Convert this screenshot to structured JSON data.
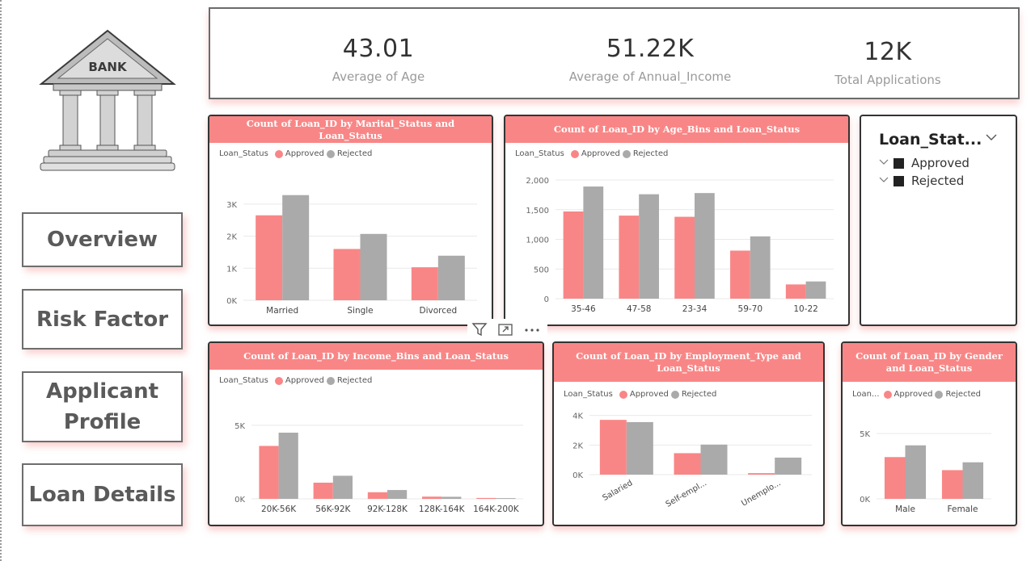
{
  "logo": {
    "text": "BANK"
  },
  "nav": [
    {
      "label": "Overview"
    },
    {
      "label": "Risk Factor"
    },
    {
      "label": "Applicant Profile"
    },
    {
      "label": "Loan Details"
    }
  ],
  "kpis": [
    {
      "value": "43.01",
      "label": "Average of Age"
    },
    {
      "value": "51.22K",
      "label": "Average of Annual_Income"
    },
    {
      "value": "12K",
      "label": "Total Applications"
    }
  ],
  "legend": {
    "field": "Loan_Status",
    "field_short": "Loan...",
    "approved": "Approved",
    "rejected": "Rejected"
  },
  "colors": {
    "approved": "#f98686",
    "rejected": "#aaaaaa"
  },
  "slicer": {
    "title": "Loan_Stat...",
    "items": [
      {
        "label": "Approved"
      },
      {
        "label": "Rejected"
      }
    ]
  },
  "visual_tools": [
    "filter-icon",
    "focus-mode-icon",
    "more-options-icon"
  ],
  "chart_data": [
    {
      "type": "bar",
      "title": "Count of Loan_ID by Marital_Status and Loan_Status",
      "categories": [
        "Married",
        "Single",
        "Divorced"
      ],
      "series": [
        {
          "name": "Approved",
          "values": [
            2650,
            1600,
            1030
          ]
        },
        {
          "name": "Rejected",
          "values": [
            3280,
            2070,
            1390
          ]
        }
      ],
      "ylim": [
        0,
        3600
      ],
      "yticks": [
        0,
        1000,
        2000,
        3000
      ],
      "ytick_labels": [
        "0K",
        "1K",
        "2K",
        "3K"
      ],
      "grid": true,
      "legend_position": "top-left"
    },
    {
      "type": "bar",
      "title": "Count of Loan_ID by Age_Bins and Loan_Status",
      "categories": [
        "35-46",
        "47-58",
        "23-34",
        "59-70",
        "10-22"
      ],
      "series": [
        {
          "name": "Approved",
          "values": [
            1470,
            1400,
            1380,
            810,
            240
          ]
        },
        {
          "name": "Rejected",
          "values": [
            1890,
            1760,
            1780,
            1050,
            290
          ]
        }
      ],
      "ylim": [
        0,
        2000
      ],
      "yticks": [
        0,
        500,
        1000,
        1500,
        2000
      ],
      "ytick_labels": [
        "0",
        "500",
        "1,000",
        "1,500",
        "2,000"
      ],
      "grid": true,
      "legend_position": "top-left"
    },
    {
      "type": "bar",
      "title": "Count of Loan_ID by Income_Bins and Loan_Status",
      "categories": [
        "20K-56K",
        "56K-92K",
        "92K-128K",
        "128K-164K",
        "164K-200K"
      ],
      "series": [
        {
          "name": "Approved",
          "values": [
            3600,
            1100,
            450,
            150,
            60
          ]
        },
        {
          "name": "Rejected",
          "values": [
            4500,
            1570,
            600,
            140,
            50
          ]
        }
      ],
      "ylim": [
        0,
        5600
      ],
      "yticks": [
        0,
        5000
      ],
      "ytick_labels": [
        "0K",
        "5K"
      ],
      "grid": true,
      "legend_position": "top-left"
    },
    {
      "type": "bar",
      "title": "Count of Loan_ID by Employment_Type and Loan_Status",
      "categories": [
        "Salaried",
        "Self-empl...",
        "Unemplo..."
      ],
      "series": [
        {
          "name": "Approved",
          "values": [
            3700,
            1450,
            100
          ]
        },
        {
          "name": "Rejected",
          "values": [
            3550,
            2030,
            1150
          ]
        }
      ],
      "ylim": [
        0,
        4200
      ],
      "yticks": [
        0,
        2000,
        4000
      ],
      "ytick_labels": [
        "0K",
        "2K",
        "4K"
      ],
      "grid": true,
      "legend_position": "top-left"
    },
    {
      "type": "bar",
      "title": "Count of Loan_ID by Gender and Loan_Status",
      "categories": [
        "Male",
        "Female"
      ],
      "series": [
        {
          "name": "Approved",
          "values": [
            3200,
            2200
          ]
        },
        {
          "name": "Rejected",
          "values": [
            4100,
            2800
          ]
        }
      ],
      "ylim": [
        0,
        6000
      ],
      "yticks": [
        0,
        5000
      ],
      "ytick_labels": [
        "0K",
        "5K"
      ],
      "grid": true,
      "legend_position": "top-left"
    }
  ]
}
